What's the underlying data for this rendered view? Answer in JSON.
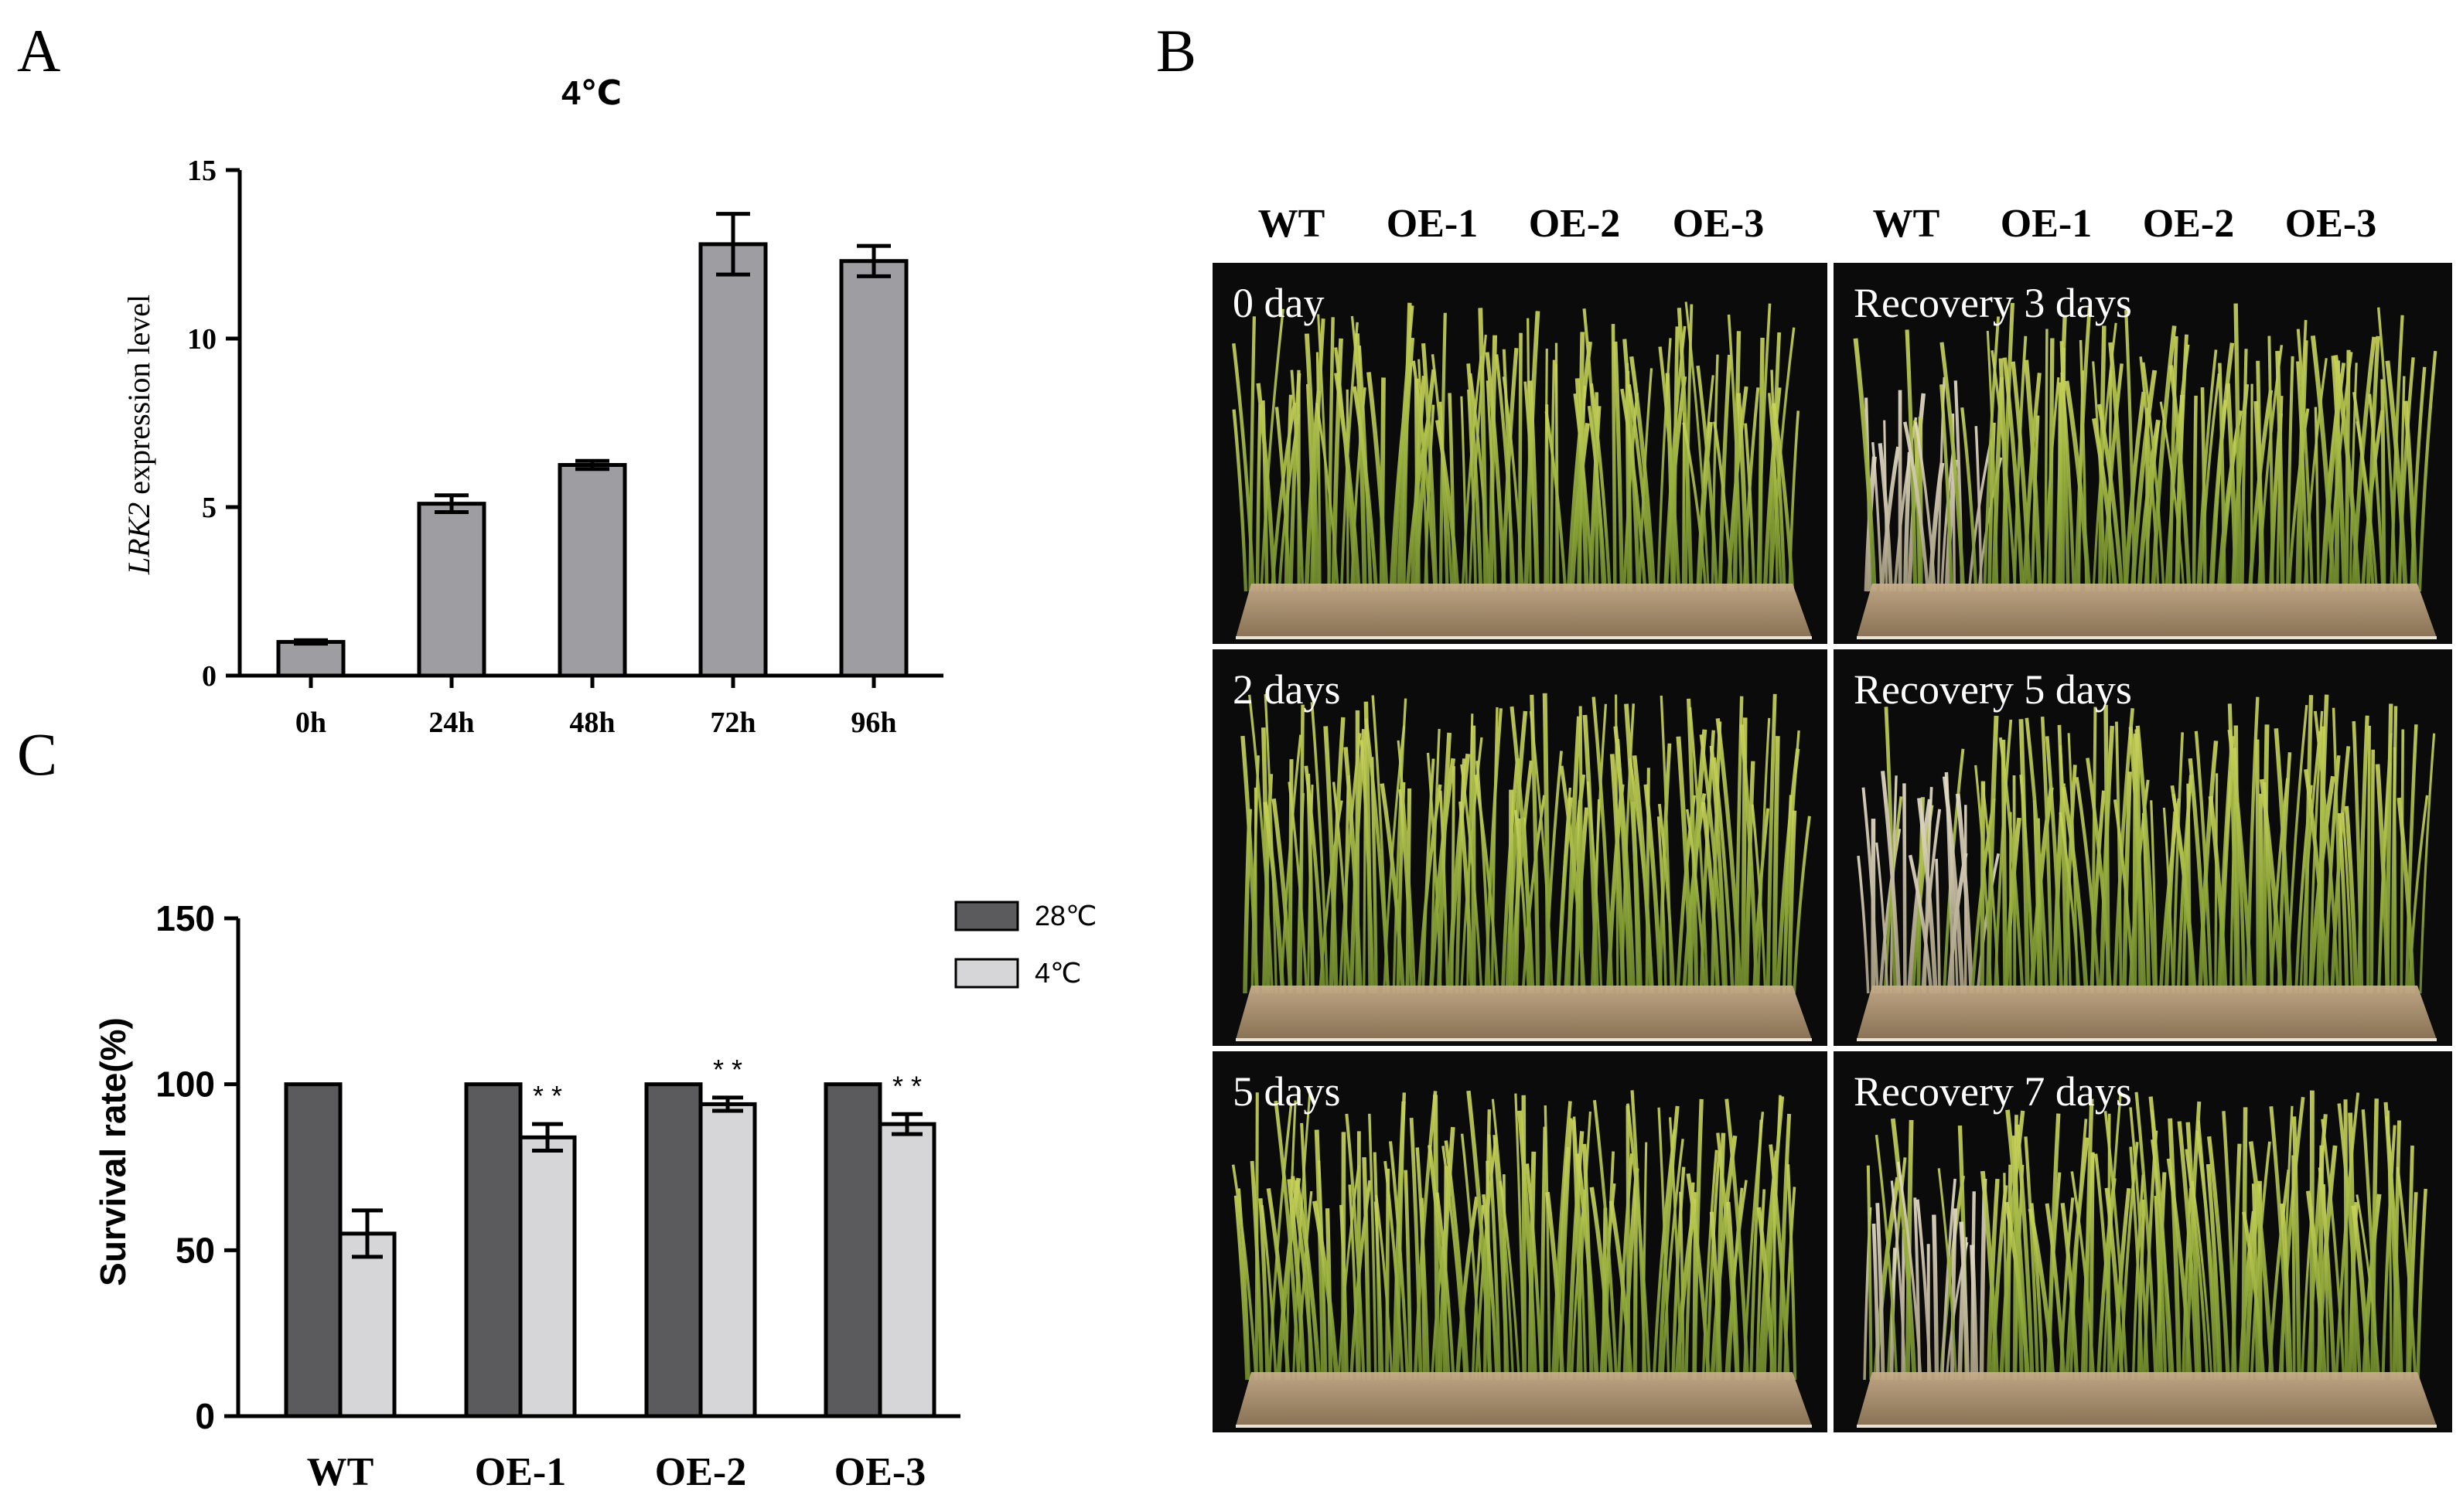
{
  "panels": {
    "a": "A",
    "b": "B",
    "c": "C"
  },
  "colors": {
    "bar_gray": "#9e9ea2",
    "bar_dark": "#5b5b5d",
    "bar_light": "#d6d6d8",
    "photo_bg": "#0b0b0b",
    "plant_green": "#a6b94a",
    "plant_pale": "#cfc7ad",
    "tray": "#b59a79"
  },
  "chart_data": [
    {
      "id": "A",
      "type": "bar",
      "title": "4℃",
      "ylabel_italic": "LRK2",
      "ylabel_rest": " expression level",
      "xlabel": "",
      "categories": [
        "0h",
        "24h",
        "48h",
        "72h",
        "96h"
      ],
      "values": [
        1.0,
        5.1,
        6.25,
        12.8,
        12.3
      ],
      "errors": [
        0.05,
        0.25,
        0.12,
        0.9,
        0.45
      ],
      "ylim": [
        0,
        15
      ],
      "yticks": [
        0,
        5,
        10,
        15
      ],
      "grid": false
    },
    {
      "id": "C",
      "type": "bar",
      "ylabel": "Survival rate(%)",
      "xlabel": "",
      "categories": [
        "WT",
        "OE-1",
        "OE-2",
        "OE-3"
      ],
      "series": [
        {
          "name": "28℃",
          "values": [
            100,
            100,
            100,
            100
          ],
          "errors": [
            0,
            0,
            0,
            0
          ]
        },
        {
          "name": "4℃",
          "values": [
            55,
            84,
            94,
            88
          ],
          "errors": [
            7,
            4,
            2,
            3
          ]
        }
      ],
      "significance": [
        "",
        "* *",
        "* *",
        "* *"
      ],
      "ylim": [
        0,
        150
      ],
      "yticks": [
        0,
        50,
        100,
        150
      ],
      "legend_position": "top-right",
      "grid": false
    }
  ],
  "photo_panel": {
    "column_headers": [
      "WT",
      "OE-1",
      "OE-2",
      "OE-3"
    ],
    "left_labels": [
      "0 day",
      "2 days",
      "5 days"
    ],
    "right_labels": [
      "Recovery 3 days",
      "Recovery 5 days",
      "Recovery 7 days"
    ],
    "wilt_wt": [
      0,
      0,
      0,
      0.75,
      0.8,
      0.7
    ]
  }
}
